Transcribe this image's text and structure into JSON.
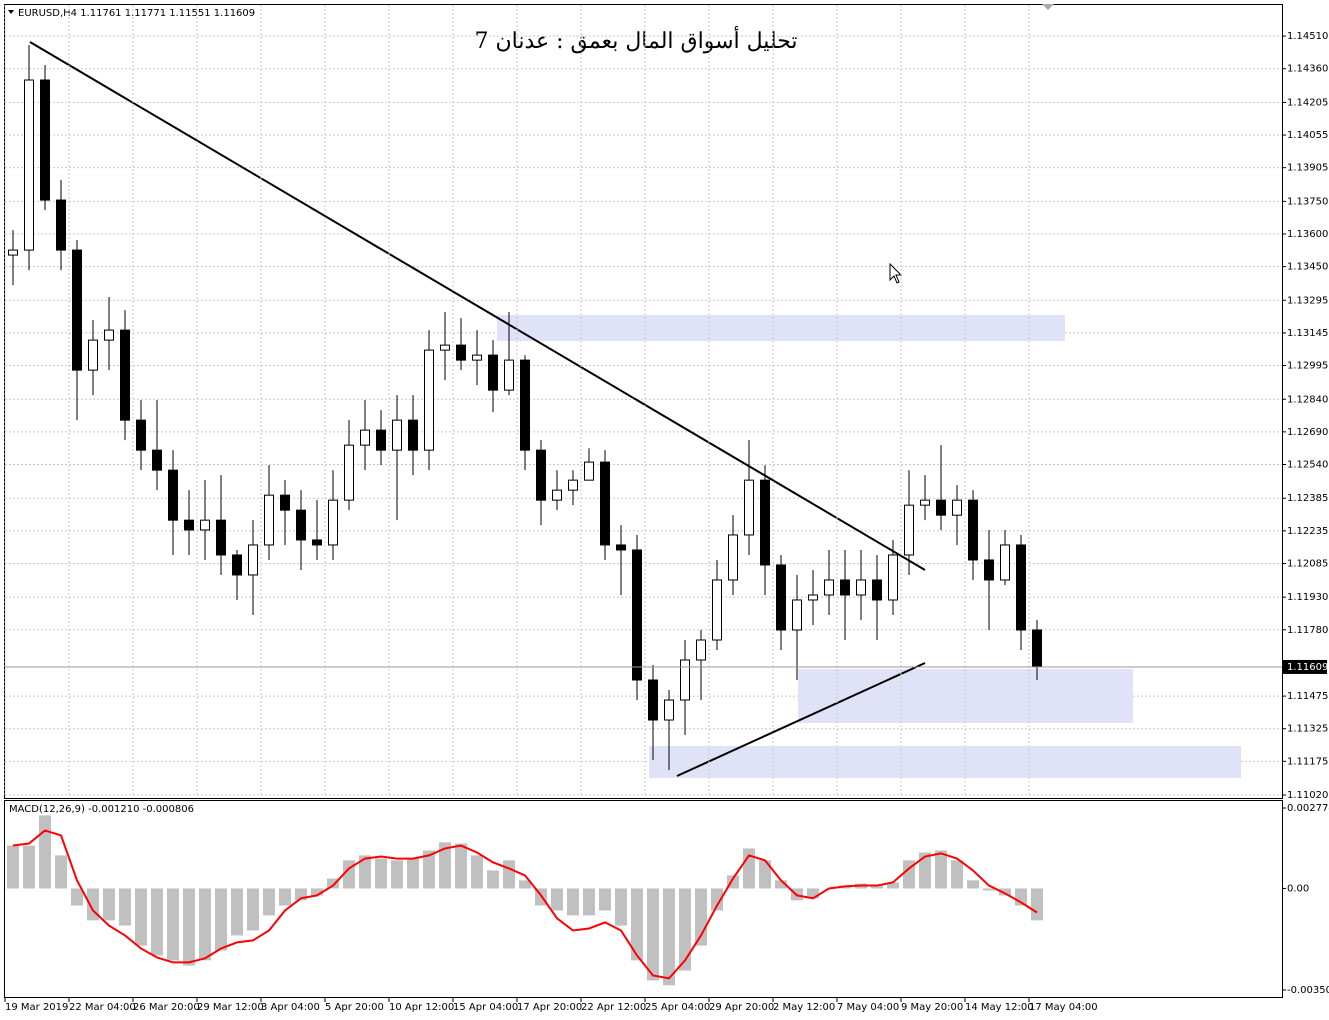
{
  "chart_data": [
    {
      "type": "candlestick",
      "header": "EURUSD,H4  1.11761 1.11771 1.11551 1.11609",
      "title": "تحليل أسواق المال بعمق : عدنان 7",
      "categories": [
        "19 Mar 2019",
        null,
        null,
        null,
        "22 Mar 04:00",
        null,
        null,
        null,
        "26 Mar 20:00",
        null,
        null,
        null,
        "29 Mar 12:00",
        null,
        null,
        null,
        "3 Apr 04:00",
        null,
        null,
        null,
        "5 Apr 20:00",
        null,
        null,
        null,
        "10 Apr 12:00",
        null,
        null,
        null,
        "15 Apr 04:00",
        null,
        null,
        null,
        "17 Apr 20:00",
        null,
        null,
        null,
        "22 Apr 12:00",
        null,
        null,
        null,
        "25 Apr 04:00",
        null,
        null,
        null,
        "29 Apr 20:00",
        null,
        null,
        null,
        "2 May 12:00",
        null,
        null,
        null,
        "7 May 04:00",
        null,
        null,
        null,
        "9 May 20:00",
        null,
        null,
        null,
        "14 May 12:00",
        null,
        null,
        null,
        "17 May 04:00"
      ],
      "open": [
        1.13503,
        1.13526,
        1.14308,
        1.13756,
        1.13526,
        1.12974,
        1.13112,
        1.13158,
        1.12744,
        1.12606,
        1.12514,
        1.12284,
        1.12239,
        1.12284,
        1.12124,
        1.12032,
        1.1217,
        1.12399,
        1.1233,
        1.12193,
        1.1217,
        1.12376,
        1.12629,
        1.12698,
        1.12606,
        1.12744,
        1.12606,
        1.13066,
        1.13089,
        1.1302,
        1.13043,
        1.12882,
        1.1302,
        1.12606,
        1.12376,
        1.12422,
        1.12468,
        1.12551,
        1.1217,
        1.12147,
        1.11549,
        1.11365,
        1.11457,
        1.11641,
        1.11733,
        1.12009,
        1.12216,
        1.12468,
        1.12078,
        1.11779,
        1.11917,
        1.1194,
        1.12009,
        1.1194,
        1.12009,
        1.11917,
        1.12124,
        1.12353,
        1.12376,
        1.12307,
        1.12376,
        1.12101,
        1.12009,
        1.1217,
        1.11779
      ],
      "high": [
        1.13618,
        1.14469,
        1.14377,
        1.13848,
        1.13572,
        1.13204,
        1.1331,
        1.1325,
        1.12836,
        1.12836,
        1.12606,
        1.12422,
        1.12468,
        1.12491,
        1.12147,
        1.12284,
        1.12537,
        1.12468,
        1.12422,
        1.12376,
        1.12514,
        1.12744,
        1.12836,
        1.1279,
        1.12859,
        1.12859,
        1.13158,
        1.13241,
        1.13213,
        1.13158,
        1.13112,
        1.13241,
        1.13043,
        1.12652,
        1.12514,
        1.12514,
        1.12615,
        1.12606,
        1.12261,
        1.12216,
        1.11618,
        1.11503,
        1.11733,
        1.11779,
        1.12101,
        1.12307,
        1.12652,
        1.12537,
        1.12124,
        1.12032,
        1.12055,
        1.12147,
        1.12147,
        1.12147,
        1.12124,
        1.12193,
        1.12514,
        1.12491,
        1.12629,
        1.12445,
        1.12422,
        1.12239,
        1.12239,
        1.12216,
        1.11825
      ],
      "low": [
        1.13365,
        1.13434,
        1.1371,
        1.13434,
        1.12744,
        1.12859,
        1.12974,
        1.12652,
        1.12514,
        1.12422,
        1.12124,
        1.12124,
        1.12101,
        1.12032,
        1.11917,
        1.11848,
        1.12101,
        1.1217,
        1.12055,
        1.12101,
        1.12101,
        1.1233,
        1.12514,
        1.12537,
        1.12284,
        1.12491,
        1.12514,
        1.12928,
        1.12974,
        1.12905,
        1.12781,
        1.12859,
        1.12514,
        1.12261,
        1.1233,
        1.12353,
        1.12468,
        1.12101,
        1.1194,
        1.11457,
        1.11181,
        1.11135,
        1.11296,
        1.11457,
        1.11687,
        1.1194,
        1.12124,
        1.1194,
        1.11687,
        1.11549,
        1.11802,
        1.11848,
        1.11733,
        1.11825,
        1.11733,
        1.11848,
        1.12032,
        1.12284,
        1.12239,
        1.1217,
        1.12009,
        1.11779,
        1.11986,
        1.11687,
        1.11549
      ],
      "close": [
        1.13526,
        1.14308,
        1.13756,
        1.13526,
        1.12974,
        1.13112,
        1.13158,
        1.12744,
        1.12606,
        1.12514,
        1.12284,
        1.12239,
        1.12284,
        1.12124,
        1.12032,
        1.1217,
        1.12399,
        1.1233,
        1.12193,
        1.1217,
        1.12376,
        1.12629,
        1.12698,
        1.12606,
        1.12744,
        1.12606,
        1.13066,
        1.13089,
        1.1302,
        1.13043,
        1.12882,
        1.1302,
        1.12606,
        1.12376,
        1.12422,
        1.12468,
        1.12551,
        1.1217,
        1.12147,
        1.11549,
        1.11365,
        1.11457,
        1.11641,
        1.11733,
        1.12009,
        1.12216,
        1.12468,
        1.12078,
        1.11779,
        1.11917,
        1.1194,
        1.12009,
        1.1194,
        1.12009,
        1.11917,
        1.12124,
        1.12353,
        1.12376,
        1.12307,
        1.12376,
        1.12101,
        1.12009,
        1.1217,
        1.11779,
        1.11609
      ],
      "last_price": 1.11609,
      "ylim": [
        1.11011,
        1.14653
      ],
      "yticks": [
        {
          "value": 1.1451,
          "label": "1.14510"
        },
        {
          "value": 1.1436,
          "label": "1.14360"
        },
        1.14205,
        1.14055,
        1.13905,
        {
          "value": 1.1375,
          "label": "1.13750"
        },
        {
          "value": 1.136,
          "label": "1.13600"
        },
        {
          "value": 1.1345,
          "label": "1.13450"
        },
        1.13295,
        1.13145,
        1.12995,
        {
          "value": 1.1284,
          "label": "1.12840"
        },
        {
          "value": 1.1269,
          "label": "1.12690"
        },
        {
          "value": 1.1254,
          "label": "1.12540"
        },
        1.12385,
        1.12235,
        1.12085,
        {
          "value": 1.1193,
          "label": "1.11930"
        },
        {
          "value": 1.1178,
          "label": "1.11780"
        },
        1.11475,
        1.11325,
        1.11175,
        {
          "value": 1.1102,
          "label": "1.11020"
        }
      ],
      "grid": true
    },
    {
      "type": "macd",
      "title": "MACD(12,26,9) -0.001210 -0.000806",
      "series": [
        {
          "color": "#c0c0c0",
          "values": [
            0.00148,
            0.00148,
            0.00252,
            0.00114,
            -0.00059,
            -0.0011,
            -0.0011,
            -0.00128,
            -0.00197,
            -0.00231,
            -0.00248,
            -0.00266,
            -0.00248,
            -0.00214,
            -0.00162,
            -0.00145,
            -0.00093,
            -0.00059,
            -0.00041,
            -0.00024,
            0.00034,
            0.00097,
            0.00114,
            0.00103,
            0.00097,
            0.00103,
            0.00131,
            0.00159,
            0.00155,
            0.00114,
            0.00062,
            0.00097,
            0.00028,
            -0.00059,
            -0.00076,
            -0.00093,
            -0.00093,
            -0.00076,
            -0.00128,
            -0.00248,
            -0.00317,
            -0.00334,
            -0.00283,
            -0.00197,
            -0.00076,
            0.00045,
            0.00138,
            0.00097,
            0.00028,
            -0.00041,
            -0.00034,
            0,
            0.0001,
            0.00017,
            0.0001,
            0.00021,
            0.00097,
            0.00124,
            0.00131,
            0.00097,
            0.00028,
            -7e-05,
            -0.00024,
            -0.00059,
            -0.0011
          ]
        },
        {
          "color": "#ff0000",
          "values": [
            0.00148,
            0.00155,
            0.002,
            0.00183,
            0.00028,
            -0.00076,
            -0.00128,
            -0.00162,
            -0.00207,
            -0.00238,
            -0.00255,
            -0.00255,
            -0.00241,
            -0.00207,
            -0.00186,
            -0.00179,
            -0.00145,
            -0.00076,
            -0.00034,
            -0.00024,
            0.0001,
            0.00069,
            0.00103,
            0.0011,
            0.00103,
            0.00103,
            0.00114,
            0.00138,
            0.00148,
            0.00124,
            0.0009,
            0.00069,
            0.00045,
            -0.00024,
            -0.00103,
            -0.00145,
            -0.00138,
            -0.00117,
            -0.00145,
            -0.00231,
            -0.003,
            -0.0031,
            -0.00248,
            -0.00162,
            -0.00059,
            0.00034,
            0.00114,
            0.00097,
            0.00028,
            -0.00024,
            -0.00034,
            0,
            7e-05,
            0.0001,
            0.0001,
            0.00021,
            0.00069,
            0.0011,
            0.00121,
            0.00103,
            0.00062,
            0.0001,
            -0.00017,
            -0.00048,
            -0.00083
          ]
        }
      ],
      "ylim": [
        -0.003743,
        0.00305
      ],
      "yticks": [
        0.002774,
        {
          "value": 0,
          "label": "0.00"
        },
        -0.003502
      ]
    }
  ]
}
